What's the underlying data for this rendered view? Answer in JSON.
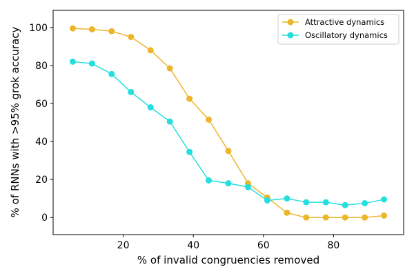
{
  "chart_data": {
    "type": "line",
    "xlabel": "% of invalid congruencies removed",
    "ylabel": "% of RNNs with >95% grok accuracy",
    "xlim": [
      0,
      100
    ],
    "ylim": [
      -9,
      109
    ],
    "xticks": [
      20,
      40,
      60,
      80
    ],
    "yticks": [
      0,
      20,
      40,
      60,
      80,
      100
    ],
    "grid": false,
    "legend_position": "top-right",
    "x": [
      5.6,
      11.1,
      16.7,
      22.2,
      27.8,
      33.3,
      38.9,
      44.4,
      50.0,
      55.6,
      61.1,
      66.7,
      72.2,
      77.8,
      83.3,
      88.9,
      94.4
    ],
    "series": [
      {
        "name": "Attractive dynamics",
        "color": "#edb62a",
        "values": [
          99.5,
          99,
          98,
          95,
          88,
          78.5,
          62.5,
          51.5,
          35,
          18,
          10.5,
          2.5,
          0,
          0,
          0,
          0,
          1
        ]
      },
      {
        "name": "Oscillatory dynamics",
        "color": "#25dede",
        "values": [
          82,
          81,
          75.5,
          66,
          58,
          50.5,
          34.5,
          19.5,
          18,
          16,
          9,
          10,
          8,
          8,
          6.5,
          7.5,
          9.5
        ]
      }
    ]
  }
}
